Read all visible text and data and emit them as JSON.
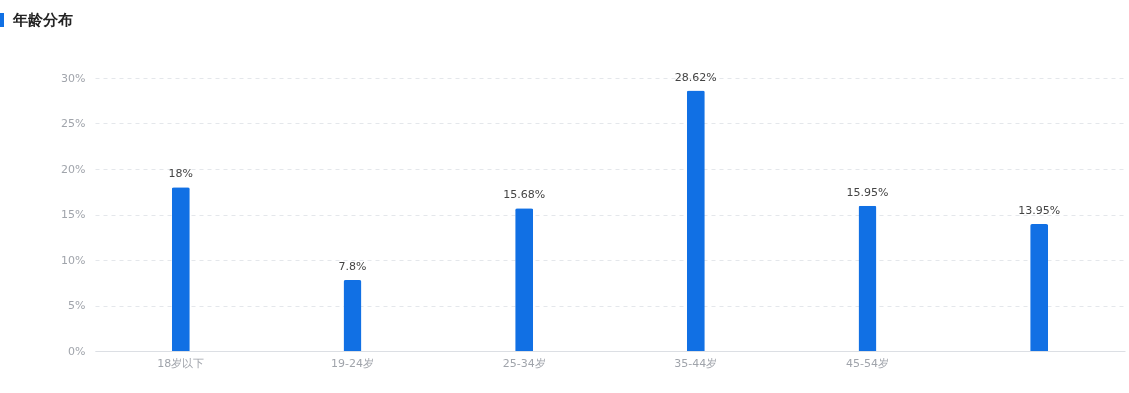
{
  "chart_data": {
    "type": "bar",
    "title": "年龄分布",
    "categories": [
      "18岁以下",
      "19-24岁",
      "25-34岁",
      "35-44岁",
      "45-54岁",
      null
    ],
    "values": [
      18,
      7.8,
      15.68,
      28.62,
      15.95,
      13.95
    ],
    "value_labels": [
      "18%",
      "7.8%",
      "15.68%",
      "28.62%",
      "15.95%",
      "13.95%"
    ],
    "color": "#1170e4",
    "ylim": [
      0,
      30
    ],
    "yticks": [
      {
        "value": 0,
        "label": "0%"
      },
      {
        "value": 5,
        "label": "5%"
      },
      {
        "value": 10,
        "label": "10%"
      },
      {
        "value": 15,
        "label": "15%"
      },
      {
        "value": 20,
        "label": "20%"
      },
      {
        "value": 25,
        "label": "25%"
      },
      {
        "value": 30,
        "label": "30%"
      }
    ],
    "grid": "y"
  }
}
